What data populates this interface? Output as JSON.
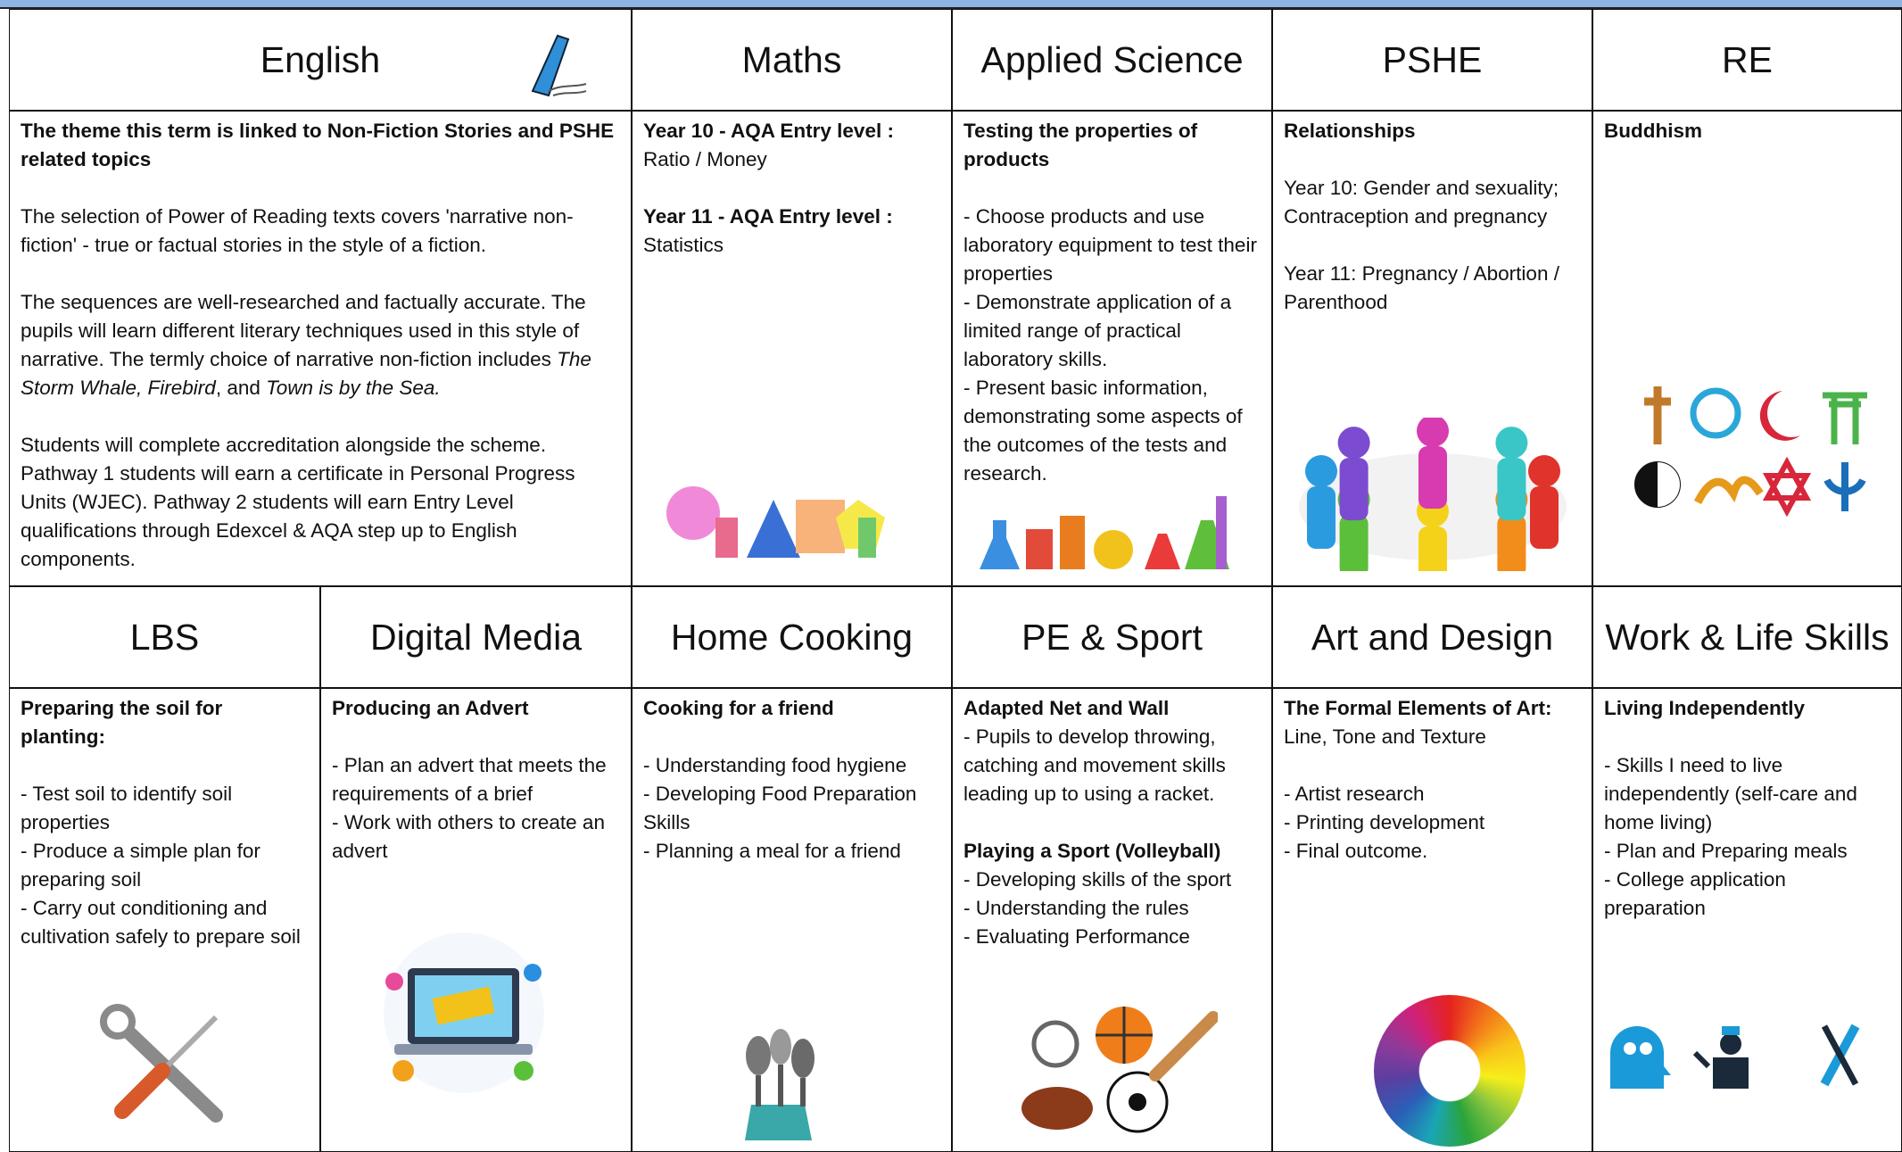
{
  "cells": [
    {
      "title": "English",
      "blocks": [
        [
          [
            {
              "text": "The theme this term is linked to Non-Fiction Stories and PSHE related topics",
              "bold": true
            }
          ]
        ],
        [
          [
            {
              "text": "The selection of Power of Reading texts covers 'narrative non-fiction' - true or factual stories in the style of a fiction."
            }
          ]
        ],
        [
          [
            {
              "text": "The sequences are well-researched and factually accurate. The pupils will learn different literary techniques used in this style of narrative. The termly choice of narrative non-fiction includes "
            },
            {
              "text": "The Storm Whale, Firebird",
              "italic": true
            },
            {
              "text": ", and "
            },
            {
              "text": "Town is by the Sea.",
              "italic": true
            }
          ]
        ],
        [
          [
            {
              "text": "Students will complete accreditation alongside the scheme. Pathway 1 students will earn a certificate in Personal Progress Units (WJEC). Pathway 2 students will earn Entry Level qualifications through Edexcel & AQA step up to English components."
            }
          ]
        ]
      ]
    },
    {
      "title": "Maths",
      "blocks": [
        [
          [
            {
              "text": "Year 10 - AQA Entry level :",
              "bold": true
            }
          ],
          [
            {
              "text": "Ratio / Money"
            }
          ]
        ],
        [
          [
            {
              "text": "Year 11 - AQA Entry level :",
              "bold": true
            }
          ],
          [
            {
              "text": "Statistics"
            }
          ]
        ]
      ]
    },
    {
      "title": "Applied Science",
      "blocks": [
        [
          [
            {
              "text": "Testing the properties of products",
              "bold": true
            }
          ]
        ],
        [
          [
            {
              "text": "- Choose products and use laboratory equipment to test their properties"
            }
          ],
          [
            {
              "text": "- Demonstrate application of a limited range of practical laboratory skills."
            }
          ],
          [
            {
              "text": "- Present basic information, demonstrating some aspects of the outcomes of the tests and research."
            }
          ]
        ]
      ]
    },
    {
      "title": "PSHE",
      "blocks": [
        [
          [
            {
              "text": "Relationships",
              "bold": true
            }
          ]
        ],
        [
          [
            {
              "text": "Year 10: Gender and sexuality; Contraception and pregnancy"
            }
          ]
        ],
        [
          [
            {
              "text": "Year 11: Pregnancy / Abortion / Parenthood"
            }
          ]
        ]
      ]
    },
    {
      "title": "RE",
      "blocks": [
        [
          [
            {
              "text": "Buddhism",
              "bold": true
            }
          ]
        ]
      ]
    },
    {
      "title": "LBS",
      "blocks": [
        [
          [
            {
              "text": "Preparing the soil for planting:",
              "bold": true
            }
          ]
        ],
        [
          [
            {
              "text": "- Test soil to identify soil properties"
            }
          ],
          [
            {
              "text": "- Produce a simple plan for preparing soil"
            }
          ],
          [
            {
              "text": "- Carry out conditioning and cultivation safely to prepare soil"
            }
          ]
        ]
      ]
    },
    {
      "title": "Digital Media",
      "blocks": [
        [
          [
            {
              "text": "Producing an Advert",
              "bold": true
            }
          ]
        ],
        [
          [
            {
              "text": "- Plan an advert that meets the requirements of a brief"
            }
          ],
          [
            {
              "text": "- Work with others to create an advert"
            }
          ]
        ]
      ]
    },
    {
      "title": "Home Cooking",
      "blocks": [
        [
          [
            {
              "text": "Cooking for a friend",
              "bold": true
            }
          ]
        ],
        [
          [
            {
              "text": "- Understanding food hygiene"
            }
          ],
          [
            {
              "text": "- Developing Food Preparation Skills"
            }
          ],
          [
            {
              "text": "- Planning a meal for a friend"
            }
          ]
        ]
      ]
    },
    {
      "title": "PE & Sport",
      "blocks": [
        [
          [
            {
              "text": "Adapted Net and Wall",
              "bold": true
            }
          ],
          [
            {
              "text": "- Pupils to develop throwing, catching and movement skills leading up to using a racket."
            }
          ]
        ],
        [
          [
            {
              "text": "Playing a Sport (Volleyball)",
              "bold": true
            }
          ],
          [
            {
              "text": "- Developing skills of the sport"
            }
          ],
          [
            {
              "text": "- Understanding the rules"
            }
          ],
          [
            {
              "text": "- Evaluating Performance"
            }
          ]
        ]
      ]
    },
    {
      "title": "Art and Design",
      "blocks": [
        [
          [
            {
              "text": "The Formal Elements of Art:",
              "bold": true
            },
            {
              "text": " Line, Tone and Texture"
            }
          ]
        ],
        [
          [
            {
              "text": "- Artist research"
            }
          ],
          [
            {
              "text": "- Printing development"
            }
          ],
          [
            {
              "text": "- Final outcome."
            }
          ]
        ]
      ]
    },
    {
      "title": "Work & Life Skills",
      "blocks": [
        [
          [
            {
              "text": "Living Independently",
              "bold": true
            }
          ]
        ],
        [
          [
            {
              "text": "- Skills I need to live independently (self-care and home living)"
            }
          ],
          [
            {
              "text": "- Plan and Preparing meals"
            }
          ],
          [
            {
              "text": "- College application preparation"
            }
          ]
        ]
      ]
    }
  ]
}
